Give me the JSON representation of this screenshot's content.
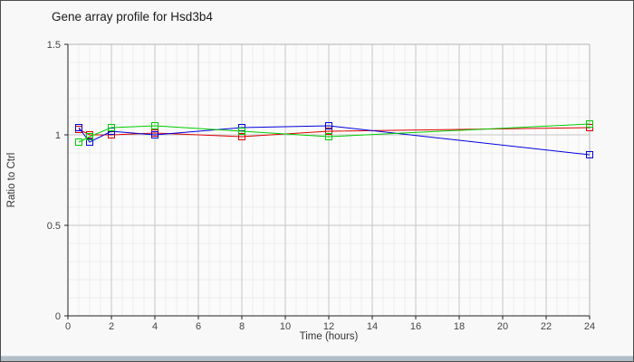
{
  "chart_data": {
    "type": "line",
    "title": "Gene array profile for Hsd3b4",
    "xlabel": "Time (hours)",
    "ylabel": "Ratio to Ctrl",
    "x": [
      0.5,
      1,
      2,
      4,
      8,
      12,
      24
    ],
    "series": [
      {
        "name": "red",
        "color": "#dd0000",
        "values": [
          1.03,
          1.0,
          1.0,
          1.01,
          0.99,
          1.02,
          1.04
        ]
      },
      {
        "name": "blue",
        "color": "#0000dd",
        "values": [
          1.04,
          0.96,
          1.02,
          1.0,
          1.04,
          1.05,
          0.89
        ]
      },
      {
        "name": "green",
        "color": "#00cc00",
        "values": [
          0.96,
          0.99,
          1.04,
          1.05,
          1.02,
          0.99,
          1.06
        ]
      }
    ],
    "xlim": [
      0,
      24
    ],
    "ylim": [
      0,
      1.5
    ],
    "x_ticks": [
      0,
      2,
      4,
      6,
      8,
      10,
      12,
      14,
      16,
      18,
      20,
      22,
      24
    ],
    "y_ticks": [
      0,
      0.5,
      1,
      1.5
    ],
    "x_minor_step": 0.5,
    "y_minor_step": 0.1,
    "grid": true,
    "legend": "none",
    "marker": "open-square"
  },
  "style_colors": {
    "plot_background": "#fbfbfb",
    "minor_grid": "#ececec",
    "major_grid": "#c6c6c6",
    "plot_border": "#b4b4b4",
    "axis": "#222222",
    "tick_text": "#444444"
  }
}
